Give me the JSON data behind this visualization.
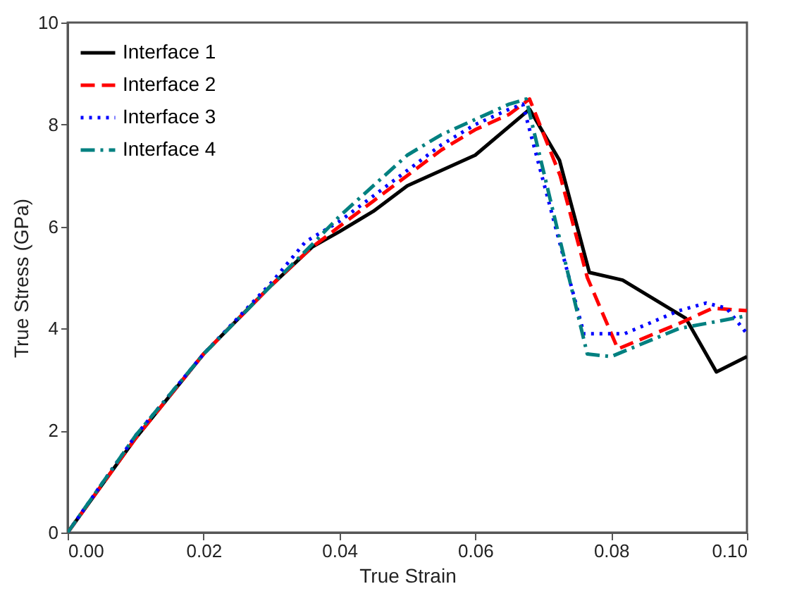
{
  "chart_data": {
    "type": "line",
    "xlabel": "True Strain",
    "ylabel": "True Stress (GPa)",
    "xlim": [
      0,
      0.1
    ],
    "ylim": [
      0,
      10
    ],
    "xticks": [
      {
        "value": 0,
        "label": "0.00"
      },
      {
        "value": 0.02,
        "label": "0.02"
      },
      {
        "value": 0.04,
        "label": "0.04"
      },
      {
        "value": 0.06,
        "label": "0.06"
      },
      {
        "value": 0.08,
        "label": "0.08"
      },
      {
        "value": 0.1,
        "label": "0.10"
      }
    ],
    "yticks": [
      0,
      2,
      4,
      6,
      8,
      10
    ],
    "grid": false,
    "legend": "top left",
    "marker": "none",
    "series": [
      {
        "name": "Interface 1",
        "color": "#000000",
        "line_style": "solid",
        "x": [
          0,
          0.01,
          0.02,
          0.03,
          0.036,
          0.04,
          0.045,
          0.05,
          0.055,
          0.06,
          0.068,
          0.0724,
          0.0768,
          0.0817,
          0.091,
          0.0955,
          0.1
        ],
        "values": [
          0,
          1.85,
          3.5,
          4.85,
          5.6,
          5.9,
          6.3,
          6.8,
          7.1,
          7.4,
          8.3,
          7.3,
          5.1,
          4.95,
          4.2,
          3.15,
          3.45
        ]
      },
      {
        "name": "Interface 2",
        "color": "#ff0000",
        "line_style": "dashed",
        "x": [
          0,
          0.01,
          0.02,
          0.03,
          0.036,
          0.04,
          0.045,
          0.05,
          0.055,
          0.06,
          0.065,
          0.068,
          0.0725,
          0.0765,
          0.081,
          0.09,
          0.095,
          0.1
        ],
        "values": [
          0,
          1.85,
          3.5,
          4.85,
          5.6,
          6.0,
          6.5,
          7.0,
          7.5,
          7.9,
          8.2,
          8.5,
          7.0,
          5.0,
          3.6,
          4.1,
          4.4,
          4.35
        ]
      },
      {
        "name": "Interface 3",
        "color": "#0000ff",
        "line_style": "dotted",
        "x": [
          0,
          0.01,
          0.02,
          0.03,
          0.035,
          0.04,
          0.045,
          0.05,
          0.055,
          0.06,
          0.065,
          0.067,
          0.076,
          0.082,
          0.09,
          0.094,
          0.097,
          0.1
        ],
        "values": [
          0,
          1.9,
          3.5,
          4.9,
          5.7,
          6.1,
          6.6,
          7.1,
          7.6,
          8.0,
          8.3,
          8.4,
          3.9,
          3.9,
          4.35,
          4.5,
          4.4,
          3.9
        ]
      },
      {
        "name": "Interface 4",
        "color": "#008080",
        "line_style": "dashdot",
        "x": [
          0,
          0.01,
          0.02,
          0.03,
          0.036,
          0.04,
          0.045,
          0.05,
          0.055,
          0.06,
          0.065,
          0.0675,
          0.0765,
          0.08,
          0.09,
          0.1
        ],
        "values": [
          0,
          1.9,
          3.5,
          4.85,
          5.65,
          6.2,
          6.8,
          7.4,
          7.8,
          8.1,
          8.4,
          8.5,
          3.5,
          3.45,
          4.0,
          4.25
        ]
      }
    ]
  }
}
